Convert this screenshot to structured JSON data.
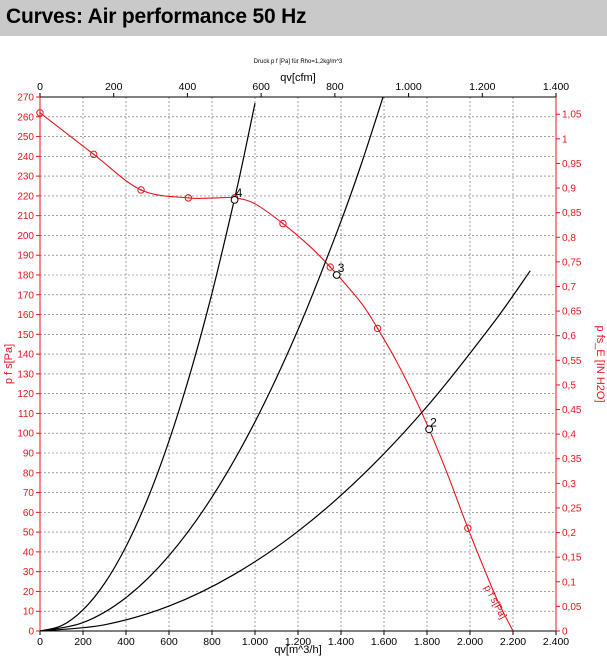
{
  "header": {
    "title": "Curves: Air performance 50 Hz"
  },
  "chart_data": {
    "type": "line",
    "title": "Curves: Air performance 50 Hz",
    "subtitle": "Druck p f [Pa] für Rho=1,2kg/m^3",
    "xlabel": "qv[m^3/h]",
    "x2label": "qv[cfm]",
    "ylabel": "p f s[Pa]",
    "y2label": "p fs_E [IN H2O]",
    "xlim": [
      0,
      2400
    ],
    "ylim": [
      0,
      270
    ],
    "x2lim": [
      0,
      1400
    ],
    "y2lim": [
      0,
      1.085
    ],
    "xticks": [
      "0",
      "200",
      "400",
      "600",
      "800",
      "1.000",
      "1.200",
      "1.400",
      "1.600",
      "1.800",
      "2.000",
      "2.200",
      "2.400"
    ],
    "x2ticks": [
      "0",
      "200",
      "400",
      "600",
      "800",
      "1.000",
      "1.200",
      "1.400"
    ],
    "yticks": [
      "0",
      "10",
      "20",
      "30",
      "40",
      "50",
      "60",
      "70",
      "80",
      "90",
      "100",
      "110",
      "120",
      "130",
      "140",
      "150",
      "160",
      "170",
      "180",
      "190",
      "200",
      "210",
      "220",
      "230",
      "240",
      "250",
      "260",
      "270"
    ],
    "y2ticks": [
      "0",
      "0,05",
      "0,1",
      "0,15",
      "0,2",
      "0,25",
      "0,3",
      "0,35",
      "0,4",
      "0,45",
      "0,5",
      "0,55",
      "0,6",
      "0,65",
      "0,7",
      "0,75",
      "0,8",
      "0,85",
      "0,9",
      "0,95",
      "1",
      "1,05"
    ],
    "grid": true,
    "series": [
      {
        "name": "p f s[Pa]",
        "color": "#e8141d",
        "x": [
          0,
          250,
          470,
          690,
          810,
          905,
          1000,
          1130,
          1260,
          1350,
          1400,
          1500,
          1570,
          1650,
          1730,
          1810,
          1900,
          1990,
          2060,
          2130,
          2200
        ],
        "y": [
          262,
          241,
          223,
          219,
          219,
          219,
          216,
          206,
          194,
          184,
          178,
          165,
          153,
          138,
          121,
          102,
          78,
          52,
          33,
          15,
          0
        ]
      },
      {
        "name": "",
        "color": "#000000",
        "x": [
          0,
          100,
          200,
          300,
          400,
          500,
          600,
          700,
          800,
          900,
          950,
          1000
        ],
        "y": [
          0,
          2.67,
          10.7,
          24.0,
          42.7,
          66.7,
          96.1,
          130.8,
          170.8,
          216.2,
          240.9,
          266.9
        ]
      },
      {
        "name": "",
        "color": "#000000",
        "x": [
          0,
          200,
          400,
          600,
          800,
          1000,
          1200,
          1380,
          1500,
          1680
        ],
        "y": [
          0,
          4.23,
          16.9,
          38.1,
          67.7,
          105.8,
          152.3,
          201.4,
          237.9,
          299.0
        ]
      },
      {
        "name": "",
        "color": "#000000",
        "x": [
          0,
          300,
          600,
          900,
          1200,
          1500,
          1800,
          2100,
          2280
        ],
        "y": [
          0,
          3.15,
          12.6,
          28.4,
          50.4,
          78.8,
          113.5,
          154.5,
          182.1
        ]
      }
    ],
    "markers": {
      "color": "#e8141d",
      "x": [
        0,
        250,
        470,
        690,
        905,
        1130,
        1350,
        1570,
        1810,
        1990
      ],
      "y": [
        262,
        241,
        223,
        219,
        219,
        206,
        184,
        153,
        102,
        52
      ]
    },
    "operating_points": [
      {
        "label": "4",
        "x": 905,
        "y": 218
      },
      {
        "label": "3",
        "x": 1380,
        "y": 180
      },
      {
        "label": "2",
        "x": 1810,
        "y": 102
      }
    ],
    "curve_label": {
      "text": "p f s[Pa]",
      "x": 2130,
      "y": 12
    }
  }
}
